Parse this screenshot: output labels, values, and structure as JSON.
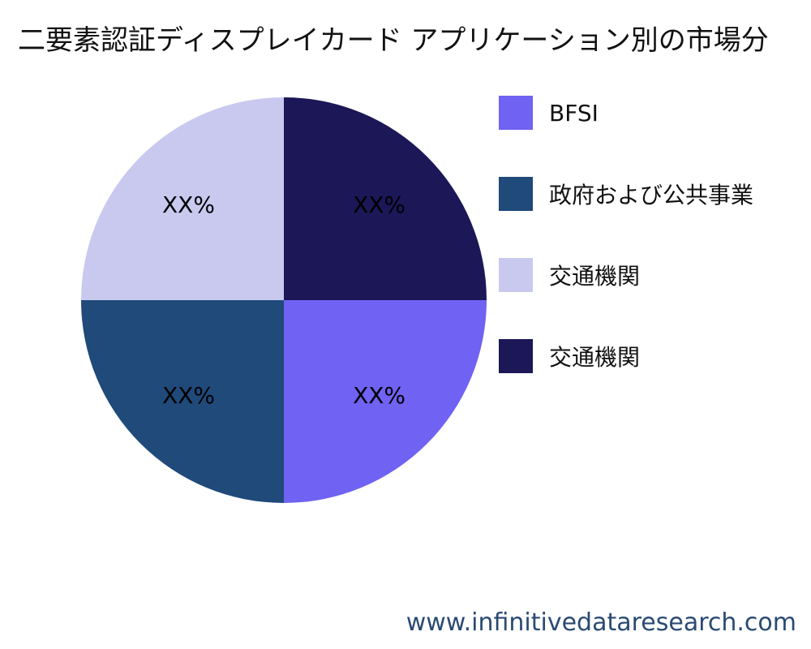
{
  "title": "二要素認証ディスプレイカード アプリケーション別の市場分",
  "source": "www.infinitivedataresearch.com",
  "chart_data": {
    "type": "pie",
    "slices": [
      {
        "name": "BFSI",
        "value": 25,
        "label": "XX%",
        "color": "#7062f2"
      },
      {
        "name": "政府および公共事業",
        "value": 25,
        "label": "XX%",
        "color": "#1f4a7a"
      },
      {
        "name": "交通機関",
        "value": 25,
        "label": "XX%",
        "color": "#c9c9f0"
      },
      {
        "name": "交通機関",
        "value": 25,
        "label": "XX%",
        "color": "#1c1757"
      }
    ],
    "legend": {
      "placement": "right"
    }
  }
}
